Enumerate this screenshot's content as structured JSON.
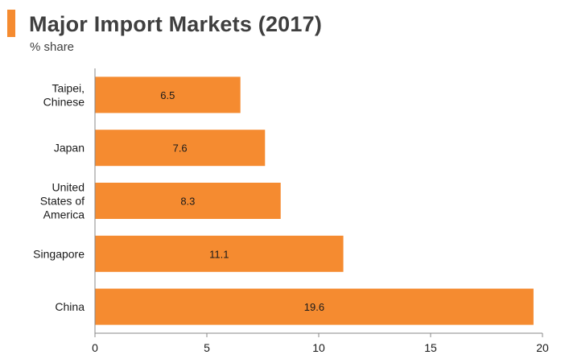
{
  "header": {
    "title": "Major Import Markets (2017)",
    "subtitle": "% share"
  },
  "colors": {
    "accent": "#F58B30",
    "bar": "#F58B30",
    "axis": "#888888"
  },
  "chart_data": {
    "type": "bar",
    "orientation": "horizontal",
    "title": "Major Import Markets (2017)",
    "ylabel": "% share",
    "xlabel": "",
    "categories": [
      "Taipei, Chinese",
      "Japan",
      "United States of America",
      "Singapore",
      "China"
    ],
    "category_lines": [
      [
        "Taipei,",
        "Chinese"
      ],
      [
        "Japan"
      ],
      [
        "United",
        "States of",
        "America"
      ],
      [
        "Singapore"
      ],
      [
        "China"
      ]
    ],
    "values": [
      6.5,
      7.6,
      8.3,
      11.1,
      19.6
    ],
    "value_labels": [
      "6.5",
      "7.6",
      "8.3",
      "11.1",
      "19.6"
    ],
    "xlim": [
      0,
      20
    ],
    "xticks": [
      0,
      5,
      10,
      15,
      20
    ],
    "grid": false,
    "legend": "none"
  }
}
